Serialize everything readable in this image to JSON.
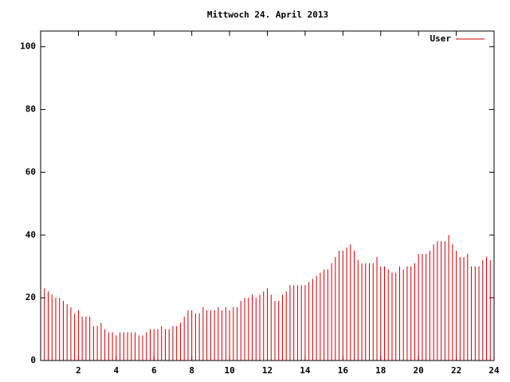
{
  "chart_data": {
    "type": "impulse",
    "title": "Mittwoch 24. April 2013",
    "x": [
      0,
      0.2,
      0.4,
      0.6,
      0.8,
      1,
      1.2,
      1.4,
      1.6,
      1.8,
      2,
      2.2,
      2.4,
      2.6,
      2.8,
      3,
      3.2,
      3.4,
      3.6,
      3.8,
      4,
      4.2,
      4.4,
      4.6,
      4.8,
      5,
      5.2,
      5.4,
      5.6,
      5.8,
      6,
      6.2,
      6.4,
      6.6,
      6.8,
      7,
      7.2,
      7.4,
      7.6,
      7.8,
      8,
      8.2,
      8.4,
      8.6,
      8.8,
      9,
      9.2,
      9.4,
      9.6,
      9.8,
      10,
      10.2,
      10.4,
      10.6,
      10.8,
      11,
      11.2,
      11.4,
      11.6,
      11.8,
      12,
      12.2,
      12.4,
      12.6,
      12.8,
      13,
      13.2,
      13.4,
      13.6,
      13.8,
      14,
      14.2,
      14.4,
      14.6,
      14.8,
      15,
      15.2,
      15.4,
      15.6,
      15.8,
      16,
      16.2,
      16.4,
      16.6,
      16.8,
      17,
      17.2,
      17.4,
      17.6,
      17.8,
      18,
      18.2,
      18.4,
      18.6,
      18.8,
      19,
      19.2,
      19.4,
      19.6,
      19.8,
      20,
      20.2,
      20.4,
      20.6,
      20.8,
      21,
      21.2,
      21.4,
      21.6,
      21.8,
      22,
      22.2,
      22.4,
      22.6,
      22.8,
      23,
      23.2,
      23.4,
      23.6,
      23.8
    ],
    "series": [
      {
        "name": "User",
        "color": "#cc0000",
        "values": [
          26,
          23,
          22,
          21,
          20,
          20,
          19,
          18,
          17,
          15,
          16,
          14,
          14,
          14,
          11,
          11,
          12,
          10,
          9,
          9,
          8,
          9,
          9,
          9,
          9,
          9,
          8,
          8,
          9,
          10,
          10,
          10,
          11,
          10,
          10,
          11,
          11,
          12,
          14,
          16,
          16,
          15,
          15,
          17,
          16,
          16,
          16,
          17,
          16,
          17,
          16,
          17,
          17,
          19,
          20,
          20,
          21,
          20,
          21,
          22,
          23,
          21,
          19,
          19,
          21,
          22,
          24,
          24,
          24,
          24,
          24,
          25,
          26,
          27,
          28,
          29,
          29,
          31,
          33,
          35,
          35,
          36,
          37,
          35,
          32,
          31,
          31,
          31,
          31,
          33,
          30,
          30,
          29,
          28,
          28,
          30,
          29,
          30,
          30,
          31,
          34,
          34,
          34,
          35,
          37,
          38,
          38,
          38,
          40,
          37,
          35,
          33,
          33,
          34,
          30,
          30,
          30,
          32,
          33,
          32
        ]
      }
    ],
    "xlim": [
      0,
      24
    ],
    "xticks": [
      2,
      4,
      6,
      8,
      10,
      12,
      14,
      16,
      18,
      20,
      22,
      24
    ],
    "ylim": [
      0,
      105
    ],
    "yticks": [
      0,
      20,
      40,
      60,
      80,
      100
    ],
    "legend": "top-right"
  }
}
